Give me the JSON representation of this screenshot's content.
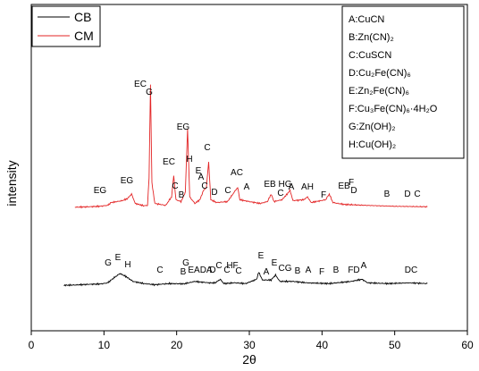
{
  "chart_data": {
    "type": "line",
    "xlabel": "2θ",
    "ylabel": "intensity",
    "xlim": [
      0,
      60
    ],
    "x_ticks": [
      "0",
      "10",
      "20",
      "30",
      "40",
      "50",
      "60"
    ],
    "series": [
      {
        "name": "CB",
        "color": "#000000",
        "points": [
          [
            4.5,
            0.18
          ],
          [
            6,
            0.2
          ],
          [
            8,
            0.25
          ],
          [
            9.5,
            0.27
          ],
          [
            10.5,
            0.35
          ],
          [
            11.5,
            0.75
          ],
          [
            12.2,
            1.0
          ],
          [
            13,
            0.8
          ],
          [
            14,
            0.45
          ],
          [
            15.5,
            0.3
          ],
          [
            17,
            0.22
          ],
          [
            19,
            0.3
          ],
          [
            21,
            0.28
          ],
          [
            22.5,
            0.45
          ],
          [
            23.5,
            0.4
          ],
          [
            24.5,
            0.35
          ],
          [
            25.3,
            0.35
          ],
          [
            26,
            0.6
          ],
          [
            26.5,
            0.3
          ],
          [
            28,
            0.35
          ],
          [
            29.5,
            0.3
          ],
          [
            31,
            0.6
          ],
          [
            31.3,
            1.1
          ],
          [
            31.8,
            0.55
          ],
          [
            33,
            0.55
          ],
          [
            33.6,
            0.9
          ],
          [
            34.2,
            0.45
          ],
          [
            36,
            0.45
          ],
          [
            38,
            0.35
          ],
          [
            41,
            0.3
          ],
          [
            44,
            0.45
          ],
          [
            45.5,
            0.6
          ],
          [
            46.3,
            0.35
          ],
          [
            49,
            0.3
          ],
          [
            52,
            0.35
          ],
          [
            54.5,
            0.3
          ]
        ]
      },
      {
        "name": "CM",
        "color": "#e32526",
        "points": [
          [
            6,
            0.4
          ],
          [
            8,
            0.45
          ],
          [
            9.5,
            0.5
          ],
          [
            10.5,
            0.6
          ],
          [
            11,
            0.9
          ],
          [
            11.8,
            1.0
          ],
          [
            12.5,
            1.1
          ],
          [
            13.2,
            1.3
          ],
          [
            13.8,
            1.8
          ],
          [
            14.3,
            0.8
          ],
          [
            15.5,
            0.55
          ],
          [
            16,
            0.6
          ],
          [
            16.2,
            3.5
          ],
          [
            16.4,
            13.5
          ],
          [
            16.6,
            3.0
          ],
          [
            17,
            0.8
          ],
          [
            18.5,
            0.6
          ],
          [
            19.3,
            1.5
          ],
          [
            19.6,
            3.8
          ],
          [
            19.9,
            1.2
          ],
          [
            20.6,
            1.0
          ],
          [
            21.2,
            2.0
          ],
          [
            21.5,
            8.8
          ],
          [
            21.8,
            1.5
          ],
          [
            22.5,
            0.8
          ],
          [
            23.2,
            1.2
          ],
          [
            23.7,
            2.2
          ],
          [
            24.1,
            2.5
          ],
          [
            24.4,
            5.2
          ],
          [
            24.7,
            1.2
          ],
          [
            25.5,
            0.9
          ],
          [
            27,
            1.0
          ],
          [
            28.1,
            2.2
          ],
          [
            28.4,
            2.5
          ],
          [
            28.7,
            1.2
          ],
          [
            30,
            1.0
          ],
          [
            31.5,
            0.8
          ],
          [
            32.5,
            1.0
          ],
          [
            33,
            1.8
          ],
          [
            33.4,
            1.0
          ],
          [
            34.5,
            1.2
          ],
          [
            35.2,
            1.8
          ],
          [
            35.6,
            2.2
          ],
          [
            36,
            1.1
          ],
          [
            37.5,
            1.2
          ],
          [
            38,
            1.5
          ],
          [
            38.5,
            0.9
          ],
          [
            40.5,
            1.2
          ],
          [
            41,
            1.8
          ],
          [
            41.5,
            0.9
          ],
          [
            43,
            0.7
          ],
          [
            46,
            0.6
          ],
          [
            50,
            0.5
          ],
          [
            54.5,
            0.45
          ]
        ]
      }
    ],
    "peak_labels_CM": [
      "EG",
      "EG",
      "EC",
      "G",
      "EC",
      "C",
      "B",
      "EG",
      "H",
      "E",
      "A",
      "C",
      "C",
      "D",
      "C",
      "AC",
      "A",
      "EB",
      "C",
      "HG",
      "A",
      "AH",
      "F",
      "EB",
      "F",
      "D",
      "B",
      "D",
      "C"
    ],
    "peak_labels_CB": [
      "G",
      "E",
      "H",
      "C",
      "B",
      "G",
      "EADA",
      "HF",
      "C",
      "D",
      "C",
      "C",
      "E",
      "A",
      "E",
      "CG",
      "B",
      "A",
      "F",
      "B",
      "FD",
      "A",
      "DC"
    ],
    "key": [
      {
        "letter": "A",
        "formula": "CuCN"
      },
      {
        "letter": "B",
        "formula": "Zn(CN)₂"
      },
      {
        "letter": "C",
        "formula": "CuSCN"
      },
      {
        "letter": "D",
        "formula": "Cu₂Fe(CN)₆"
      },
      {
        "letter": "E",
        "formula": "Zn₂Fe(CN)₆"
      },
      {
        "letter": "F",
        "formula": "Cu₃Fe(CN)₆·4H₂O"
      },
      {
        "letter": "G",
        "formula": "Zn(OH)₂"
      },
      {
        "letter": "H",
        "formula": "Cu(OH)₂"
      }
    ]
  }
}
